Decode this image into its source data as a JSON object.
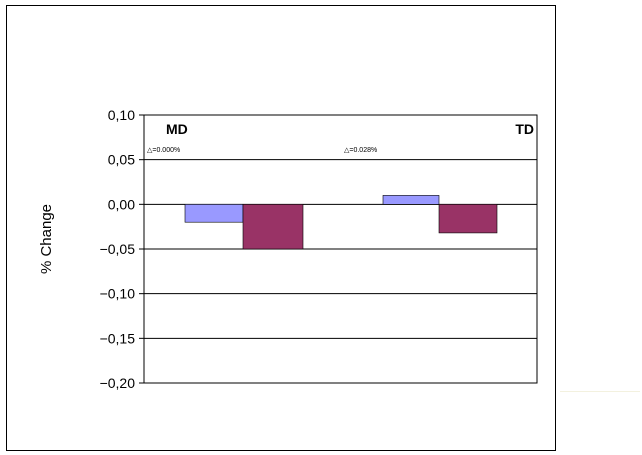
{
  "chart_data": {
    "type": "bar",
    "ylabel": "% Change",
    "ylim": [
      -0.2,
      0.1
    ],
    "yticks": [
      0.1,
      0.05,
      0.0,
      -0.05,
      -0.1,
      -0.15,
      -0.2
    ],
    "ytick_labels": [
      "0,10",
      "0,05",
      "0,00",
      "−0,05",
      "−0,10",
      "−0,15",
      "−0,20"
    ],
    "grid": true,
    "categories": [
      "MD",
      "TD"
    ],
    "annotations": [
      "△=0.000%",
      "△=0.028%"
    ],
    "series": [
      {
        "color": "#9999ff",
        "values": [
          -0.02,
          0.01
        ]
      },
      {
        "color": "#993366",
        "values": [
          -0.05,
          -0.032
        ]
      }
    ]
  }
}
